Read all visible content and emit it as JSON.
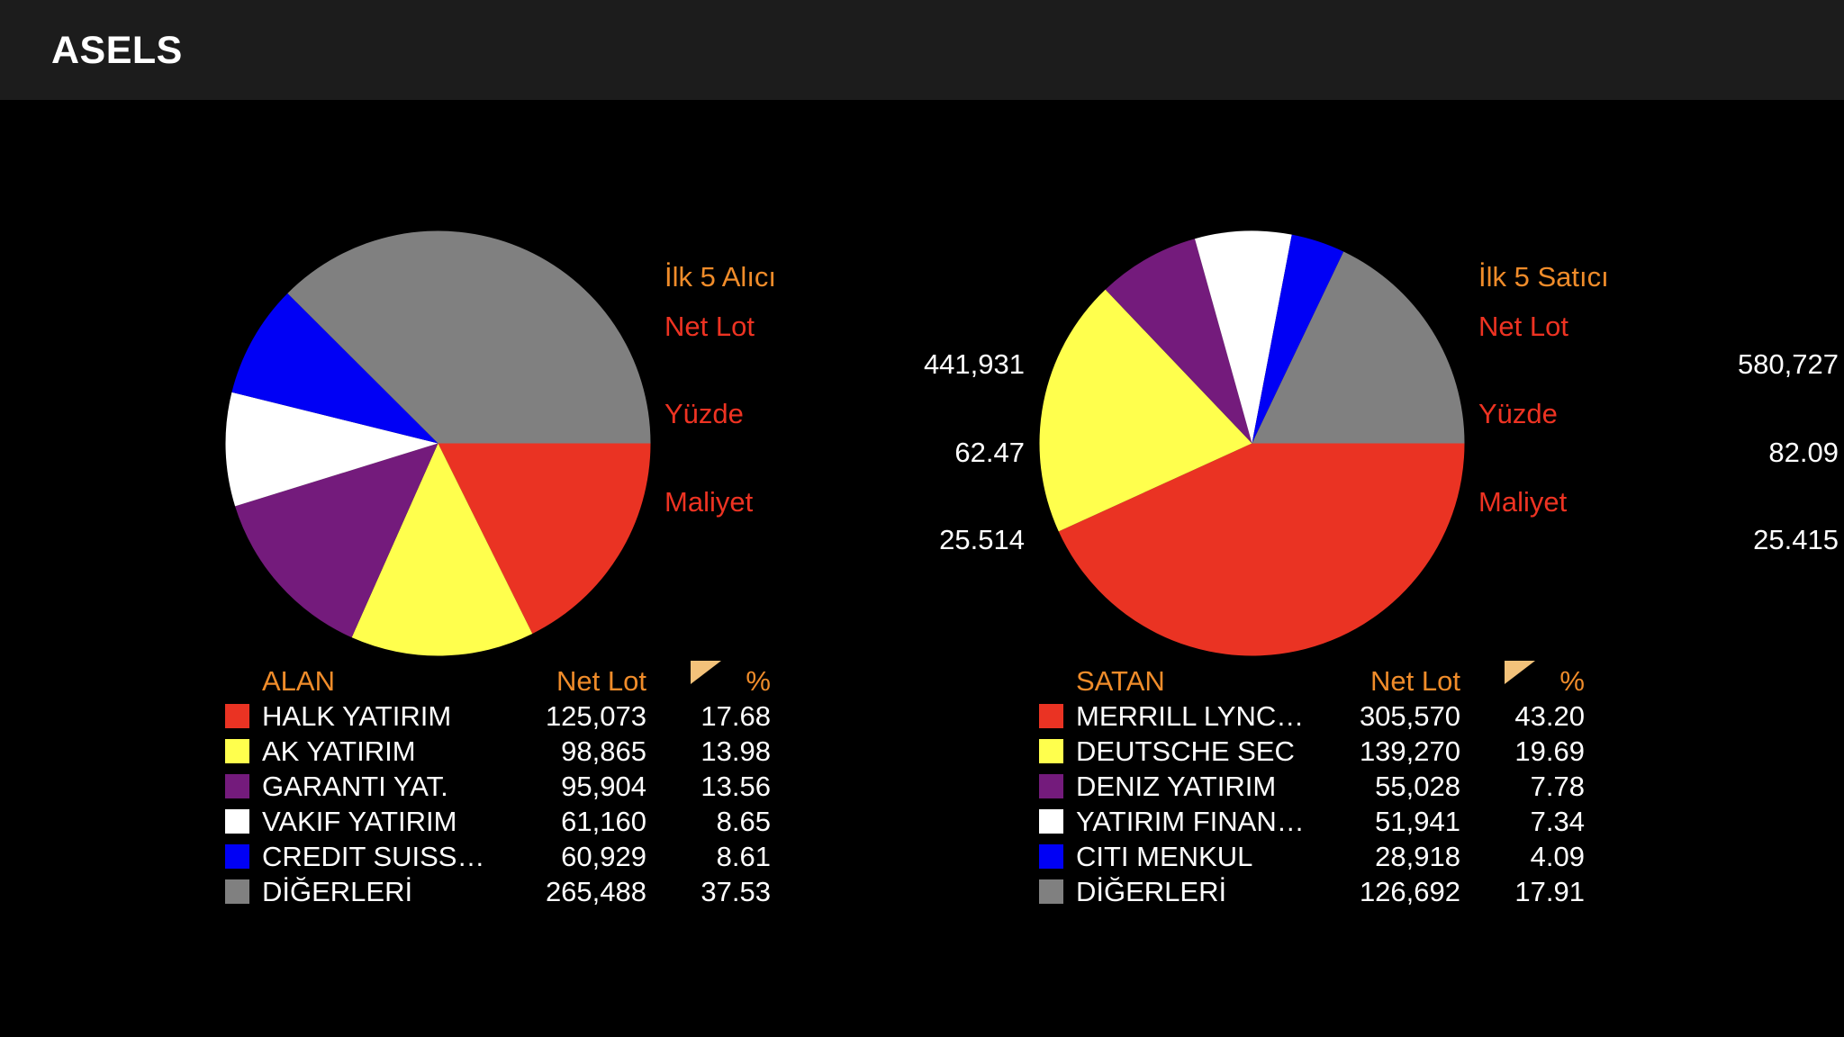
{
  "header": {
    "title": "ASELS"
  },
  "chart_data": [
    {
      "type": "pie",
      "title": "İlk 5 Alıcı",
      "summary": {
        "net_lot_label": "Net Lot",
        "net_lot": "441,931",
        "pct_label": "Yüzde",
        "pct": "62.47",
        "cost_label": "Maliyet",
        "cost": "25.514"
      },
      "table": {
        "name_header": "ALAN",
        "lot_header": "Net Lot",
        "pct_header": "%"
      },
      "slices": [
        {
          "label": "HALK YATIRIM",
          "net_lot": "125,073",
          "pct": "17.68",
          "value": 17.68,
          "color": "#ea3323"
        },
        {
          "label": "AK YATIRIM",
          "net_lot": "98,865",
          "pct": "13.98",
          "value": 13.98,
          "color": "#ffff4d"
        },
        {
          "label": "GARANTI YAT.",
          "net_lot": "95,904",
          "pct": "13.56",
          "value": 13.56,
          "color": "#741b7c"
        },
        {
          "label": "VAKIF YATIRIM",
          "net_lot": "61,160",
          "pct": "8.65",
          "value": 8.65,
          "color": "#ffffff"
        },
        {
          "label": "CREDIT SUISS…",
          "net_lot": "60,929",
          "pct": "8.61",
          "value": 8.61,
          "color": "#0000f5"
        },
        {
          "label": "DİĞERLERİ",
          "net_lot": "265,488",
          "pct": "37.53",
          "value": 37.53,
          "color": "#808080"
        }
      ]
    },
    {
      "type": "pie",
      "title": "İlk 5 Satıcı",
      "summary": {
        "net_lot_label": "Net Lot",
        "net_lot": "580,727",
        "pct_label": "Yüzde",
        "pct": "82.09",
        "cost_label": "Maliyet",
        "cost": "25.415"
      },
      "table": {
        "name_header": "SATAN",
        "lot_header": "Net Lot",
        "pct_header": "%"
      },
      "slices": [
        {
          "label": "MERRILL LYNC…",
          "net_lot": "305,570",
          "pct": "43.20",
          "value": 43.2,
          "color": "#ea3323"
        },
        {
          "label": "DEUTSCHE SEC",
          "net_lot": "139,270",
          "pct": "19.69",
          "value": 19.69,
          "color": "#ffff4d"
        },
        {
          "label": "DENIZ YATIRIM",
          "net_lot": "55,028",
          "pct": "7.78",
          "value": 7.78,
          "color": "#741b7c"
        },
        {
          "label": "YATIRIM FINAN…",
          "net_lot": "51,941",
          "pct": "7.34",
          "value": 7.34,
          "color": "#ffffff"
        },
        {
          "label": "CITI MENKUL",
          "net_lot": "28,918",
          "pct": "4.09",
          "value": 4.09,
          "color": "#0000f5"
        },
        {
          "label": "DİĞERLERİ",
          "net_lot": "126,692",
          "pct": "17.91",
          "value": 17.91,
          "color": "#808080"
        }
      ]
    }
  ]
}
